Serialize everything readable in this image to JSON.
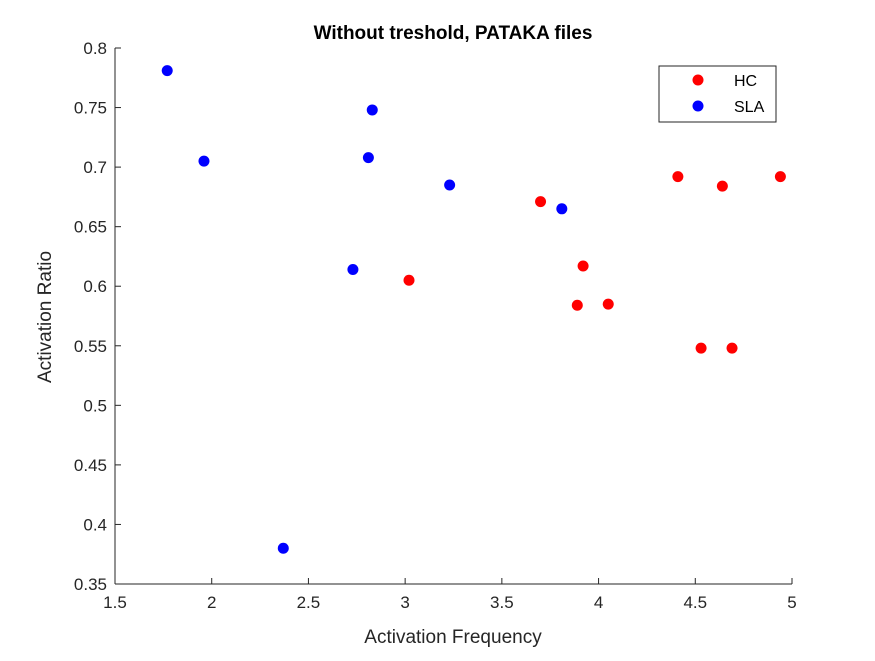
{
  "chart_data": {
    "type": "scatter",
    "title": "Without treshold, PATAKA files",
    "xlabel": "Activation Frequency",
    "ylabel": "Activation Ratio",
    "xlim": [
      1.5,
      5
    ],
    "ylim": [
      0.35,
      0.8
    ],
    "xticks": [
      "1.5",
      "2",
      "2.5",
      "3",
      "3.5",
      "4",
      "4.5",
      "5"
    ],
    "yticks": [
      "0.35",
      "0.4",
      "0.45",
      "0.5",
      "0.55",
      "0.6",
      "0.65",
      "0.7",
      "0.75",
      "0.8"
    ],
    "grid": false,
    "legend_position": "top-right",
    "series": [
      {
        "name": "HC",
        "color": "#ff0000",
        "points": [
          {
            "x": 3.02,
            "y": 0.605
          },
          {
            "x": 3.7,
            "y": 0.671
          },
          {
            "x": 3.89,
            "y": 0.584
          },
          {
            "x": 3.92,
            "y": 0.617
          },
          {
            "x": 4.05,
            "y": 0.585
          },
          {
            "x": 4.41,
            "y": 0.692
          },
          {
            "x": 4.53,
            "y": 0.548
          },
          {
            "x": 4.64,
            "y": 0.684
          },
          {
            "x": 4.69,
            "y": 0.548
          },
          {
            "x": 4.94,
            "y": 0.692
          }
        ]
      },
      {
        "name": "SLA",
        "color": "#0000ff",
        "points": [
          {
            "x": 1.77,
            "y": 0.781
          },
          {
            "x": 1.96,
            "y": 0.705
          },
          {
            "x": 2.37,
            "y": 0.38
          },
          {
            "x": 2.73,
            "y": 0.614
          },
          {
            "x": 2.81,
            "y": 0.708
          },
          {
            "x": 2.83,
            "y": 0.748
          },
          {
            "x": 3.23,
            "y": 0.685
          },
          {
            "x": 3.81,
            "y": 0.665
          }
        ]
      }
    ]
  }
}
